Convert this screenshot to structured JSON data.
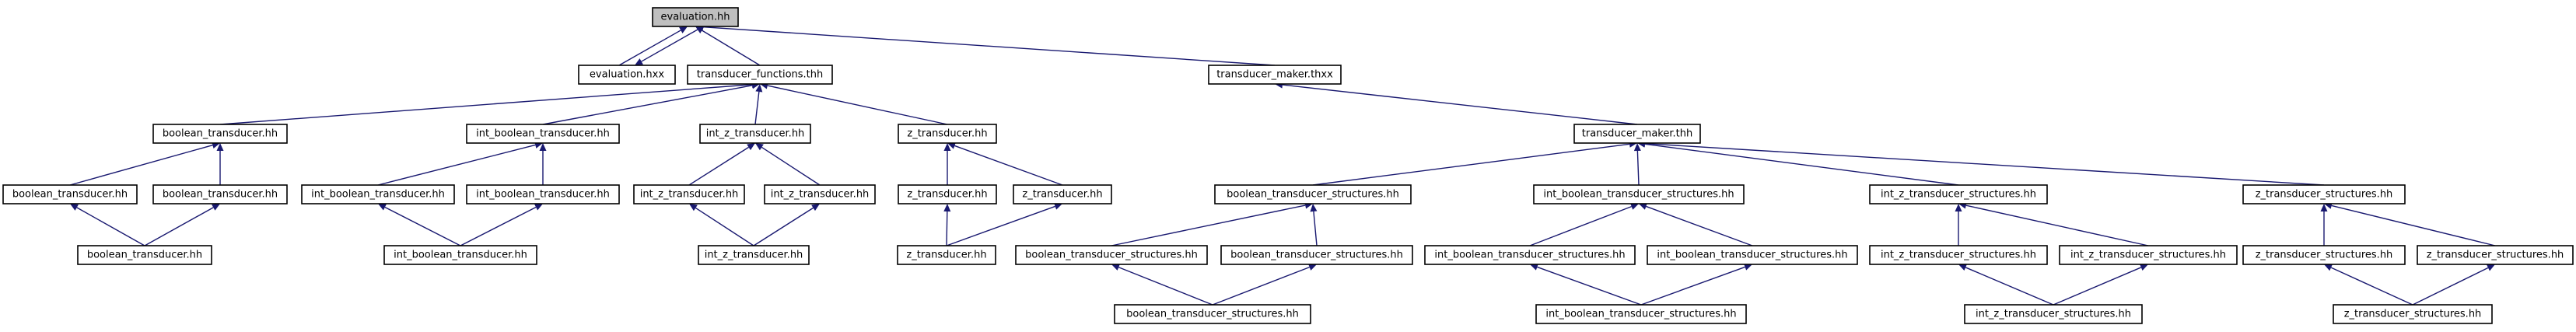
{
  "colors": {
    "edge": "#191970",
    "root_fill": "#bfbfbf",
    "node_fill": "#ffffff",
    "node_border": "#000000"
  },
  "nodes": [
    {
      "id": "n_eval",
      "label": "evaluation.hh",
      "root": true
    },
    {
      "id": "n_evalhxx",
      "label": "evaluation.hxx"
    },
    {
      "id": "n_tf",
      "label": "transducer_functions.thh"
    },
    {
      "id": "n_tmthxx",
      "label": "transducer_maker.thxx"
    },
    {
      "id": "n_bt1",
      "label": "boolean_transducer.hh"
    },
    {
      "id": "n_ibt1",
      "label": "int_boolean_transducer.hh"
    },
    {
      "id": "n_izt1",
      "label": "int_z_transducer.hh"
    },
    {
      "id": "n_zt1",
      "label": "z_transducer.hh"
    },
    {
      "id": "n_tmthh",
      "label": "transducer_maker.thh"
    },
    {
      "id": "n_bt2a",
      "label": "boolean_transducer.hh"
    },
    {
      "id": "n_bt2b",
      "label": "boolean_transducer.hh"
    },
    {
      "id": "n_ibt2a",
      "label": "int_boolean_transducer.hh"
    },
    {
      "id": "n_ibt2b",
      "label": "int_boolean_transducer.hh"
    },
    {
      "id": "n_izt2a",
      "label": "int_z_transducer.hh"
    },
    {
      "id": "n_izt2b",
      "label": "int_z_transducer.hh"
    },
    {
      "id": "n_zt2a",
      "label": "z_transducer.hh"
    },
    {
      "id": "n_zt2b",
      "label": "z_transducer.hh"
    },
    {
      "id": "n_bts1",
      "label": "boolean_transducer_structures.hh"
    },
    {
      "id": "n_ibts1",
      "label": "int_boolean_transducer_structures.hh"
    },
    {
      "id": "n_izts1",
      "label": "int_z_transducer_structures.hh"
    },
    {
      "id": "n_zts1",
      "label": "z_transducer_structures.hh"
    },
    {
      "id": "n_bt3",
      "label": "boolean_transducer.hh"
    },
    {
      "id": "n_ibt3",
      "label": "int_boolean_transducer.hh"
    },
    {
      "id": "n_izt3",
      "label": "int_z_transducer.hh"
    },
    {
      "id": "n_zt3",
      "label": "z_transducer.hh"
    },
    {
      "id": "n_bts2a",
      "label": "boolean_transducer_structures.hh"
    },
    {
      "id": "n_bts2b",
      "label": "boolean_transducer_structures.hh"
    },
    {
      "id": "n_ibts2a",
      "label": "int_boolean_transducer_structures.hh"
    },
    {
      "id": "n_ibts2b",
      "label": "int_boolean_transducer_structures.hh"
    },
    {
      "id": "n_izts2a",
      "label": "int_z_transducer_structures.hh"
    },
    {
      "id": "n_izts2b",
      "label": "int_z_transducer_structures.hh"
    },
    {
      "id": "n_zts2a",
      "label": "z_transducer_structures.hh"
    },
    {
      "id": "n_zts2b",
      "label": "z_transducer_structures.hh"
    },
    {
      "id": "n_bts3",
      "label": "boolean_transducer_structures.hh"
    },
    {
      "id": "n_ibts3",
      "label": "int_boolean_transducer_structures.hh"
    },
    {
      "id": "n_izts3",
      "label": "int_z_transducer_structures.hh"
    },
    {
      "id": "n_zts3",
      "label": "z_transducer_structures.hh"
    }
  ],
  "edges": [
    {
      "from": "n_evalhxx",
      "to": "n_eval"
    },
    {
      "from": "n_eval",
      "to": "n_evalhxx"
    },
    {
      "from": "n_tf",
      "to": "n_eval"
    },
    {
      "from": "n_tmthxx",
      "to": "n_eval"
    },
    {
      "from": "n_bt1",
      "to": "n_tf"
    },
    {
      "from": "n_ibt1",
      "to": "n_tf"
    },
    {
      "from": "n_izt1",
      "to": "n_tf"
    },
    {
      "from": "n_zt1",
      "to": "n_tf"
    },
    {
      "from": "n_tmthh",
      "to": "n_tmthxx"
    },
    {
      "from": "n_bt2a",
      "to": "n_bt1"
    },
    {
      "from": "n_bt2b",
      "to": "n_bt1"
    },
    {
      "from": "n_bt3",
      "to": "n_bt2a"
    },
    {
      "from": "n_bt3",
      "to": "n_bt2b"
    },
    {
      "from": "n_ibt2a",
      "to": "n_ibt1"
    },
    {
      "from": "n_ibt2b",
      "to": "n_ibt1"
    },
    {
      "from": "n_ibt3",
      "to": "n_ibt2a"
    },
    {
      "from": "n_ibt3",
      "to": "n_ibt2b"
    },
    {
      "from": "n_izt2a",
      "to": "n_izt1"
    },
    {
      "from": "n_izt2b",
      "to": "n_izt1"
    },
    {
      "from": "n_izt3",
      "to": "n_izt2a"
    },
    {
      "from": "n_izt3",
      "to": "n_izt2b"
    },
    {
      "from": "n_zt2a",
      "to": "n_zt1"
    },
    {
      "from": "n_zt2b",
      "to": "n_zt1"
    },
    {
      "from": "n_zt3",
      "to": "n_zt2a"
    },
    {
      "from": "n_zt3",
      "to": "n_zt2b"
    },
    {
      "from": "n_bts1",
      "to": "n_tmthh"
    },
    {
      "from": "n_ibts1",
      "to": "n_tmthh"
    },
    {
      "from": "n_izts1",
      "to": "n_tmthh"
    },
    {
      "from": "n_zts1",
      "to": "n_tmthh"
    },
    {
      "from": "n_bts2a",
      "to": "n_bts1"
    },
    {
      "from": "n_bts2b",
      "to": "n_bts1"
    },
    {
      "from": "n_bts3",
      "to": "n_bts2a"
    },
    {
      "from": "n_bts3",
      "to": "n_bts2b"
    },
    {
      "from": "n_ibts2a",
      "to": "n_ibts1"
    },
    {
      "from": "n_ibts2b",
      "to": "n_ibts1"
    },
    {
      "from": "n_ibts3",
      "to": "n_ibts2a"
    },
    {
      "from": "n_ibts3",
      "to": "n_ibts2b"
    },
    {
      "from": "n_izts2a",
      "to": "n_izts1"
    },
    {
      "from": "n_izts2b",
      "to": "n_izts1"
    },
    {
      "from": "n_izts3",
      "to": "n_izts2a"
    },
    {
      "from": "n_izts3",
      "to": "n_izts2b"
    },
    {
      "from": "n_zts2a",
      "to": "n_zts1"
    },
    {
      "from": "n_zts2b",
      "to": "n_zts1"
    },
    {
      "from": "n_zts3",
      "to": "n_zts2a"
    },
    {
      "from": "n_zts3",
      "to": "n_zts2b"
    }
  ]
}
